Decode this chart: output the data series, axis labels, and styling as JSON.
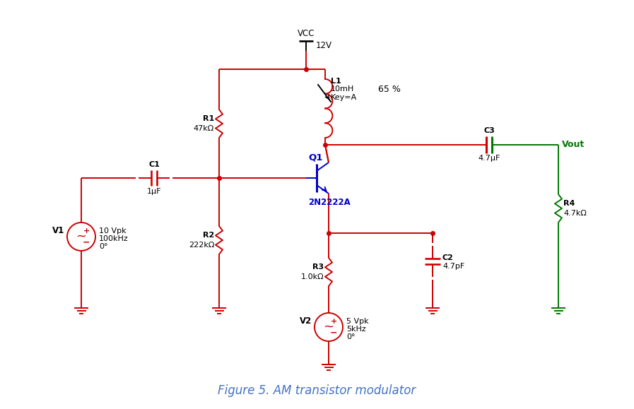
{
  "bg_color": "#ffffff",
  "title": "Figure 5. AM transistor modulator",
  "title_color": "#4472c4",
  "title_fontsize": 12,
  "red": "#cc0000",
  "blue": "#0000cc",
  "green": "#007700",
  "black": "#000000",
  "vcc_label": "VCC",
  "vcc_value": "12V",
  "l1_label": "L1",
  "l1_value": "10mH",
  "l1_key": "Key=A",
  "l1_pct": "65 %",
  "r1_label": "R1",
  "r1_value": "47kΩ",
  "r2_label": "R2",
  "r2_value": "222kΩ",
  "r3_label": "R3",
  "r3_value": "1.0kΩ",
  "r4_label": "R4",
  "r4_value": "4.7kΩ",
  "c1_label": "C1",
  "c1_value": "1µF",
  "c2_label": "C2",
  "c2_value": "4.7pF",
  "c3_label": "C3",
  "c3_value": "4.7µF",
  "q1_label": "Q1",
  "q1_value": "2N2222A",
  "v1_label": "V1",
  "v2_label": "V2",
  "vout_label": "Vout",
  "v1_line1": "10 Vpk",
  "v1_line2": "100kHz",
  "v1_line3": "0°",
  "v2_line1": "5 Vpk",
  "v2_line2": "5kHz",
  "v2_line3": "0°"
}
